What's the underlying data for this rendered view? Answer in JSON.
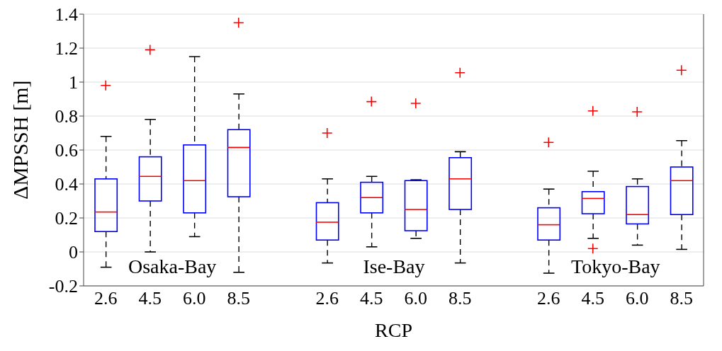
{
  "chart_data": {
    "type": "box",
    "xlabel": "RCP",
    "ylabel": "ΔMPSSH [m]",
    "categories": [
      "2.6",
      "4.5",
      "6.0",
      "8.5",
      "2.6",
      "4.5",
      "6.0",
      "8.5",
      "2.6",
      "4.5",
      "6.0",
      "8.5"
    ],
    "series": [
      {
        "color": "#0000ff",
        "boxes": [
          {
            "low": -0.09,
            "q1": 0.12,
            "median": 0.235,
            "q3": 0.43,
            "high": 0.68,
            "outliers": [
              0.98
            ]
          },
          {
            "low": 0.0,
            "q1": 0.3,
            "median": 0.445,
            "q3": 0.56,
            "high": 0.78,
            "outliers": [
              1.19
            ]
          },
          {
            "low": 0.09,
            "q1": 0.23,
            "median": 0.42,
            "q3": 0.63,
            "high": 1.15
          },
          {
            "low": -0.12,
            "q1": 0.325,
            "median": 0.615,
            "q3": 0.72,
            "high": 0.93,
            "outliers": [
              1.35
            ]
          },
          {
            "low": -0.065,
            "q1": 0.07,
            "median": 0.175,
            "q3": 0.29,
            "high": 0.43,
            "outliers": [
              0.7
            ]
          },
          {
            "low": 0.03,
            "q1": 0.23,
            "median": 0.32,
            "q3": 0.41,
            "high": 0.445,
            "outliers": [
              0.885
            ]
          },
          {
            "low": 0.08,
            "q1": 0.125,
            "median": 0.25,
            "q3": 0.42,
            "high": 0.425,
            "outliers": [
              0.875
            ]
          },
          {
            "low": -0.065,
            "q1": 0.25,
            "median": 0.43,
            "q3": 0.555,
            "high": 0.59,
            "outliers": [
              1.055
            ]
          },
          {
            "low": -0.125,
            "q1": 0.07,
            "median": 0.16,
            "q3": 0.26,
            "high": 0.37,
            "outliers": [
              0.645
            ]
          },
          {
            "low": 0.08,
            "q1": 0.225,
            "median": 0.315,
            "q3": 0.355,
            "high": 0.475,
            "outliers": [
              0.83,
              0.02
            ]
          },
          {
            "low": 0.04,
            "q1": 0.165,
            "median": 0.22,
            "q3": 0.385,
            "high": 0.43,
            "outliers": [
              0.825
            ]
          },
          {
            "low": 0.015,
            "q1": 0.22,
            "median": 0.42,
            "q3": 0.5,
            "high": 0.655,
            "outliers": [
              1.07
            ]
          }
        ]
      }
    ],
    "annotations": [
      "Osaka-Bay",
      "Ise-Bay",
      "Tokyo-Bay"
    ],
    "ylim": [
      -0.2,
      1.4
    ],
    "yticks": [
      -0.2,
      0,
      0.2,
      0.4,
      0.6,
      0.8,
      1,
      1.2,
      1.4
    ],
    "grid": "y",
    "marker": "cross",
    "line_style": "dashed"
  }
}
